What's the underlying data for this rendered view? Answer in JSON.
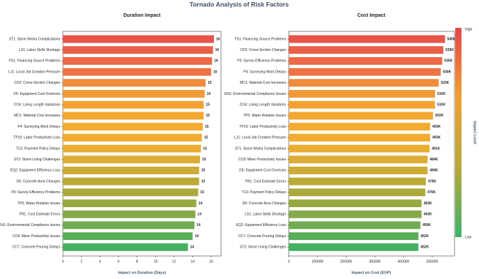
{
  "title": "Tornado Analysis of Risk Factors",
  "chart_data": [
    {
      "type": "barh",
      "title": "Duration Impact",
      "xlabel": "Impact on Duration (Days)",
      "categories": [
        "ST1: Stone Works Complications",
        "LS1: Labor Skills Shortage",
        "FS1: Financing Source Problems",
        "LJ1: Local Job Creation Pressure",
        "CO2: Cross-Section Changes",
        "D5: Equipment Cost Overruns",
        "CO4: Lining Length Variations",
        "MC1: Material Cost Increases",
        "P4: Surveying Work Delays",
        "TP10: Labor Productivity Loss",
        "TC3: Payment Policy Delays",
        "ST2: Stone Lining Challenges",
        "EQ2: Equipment Efficiency Loss",
        "D6: Concrete Area Changes",
        "P3: Survey Efficiency Problems",
        "TP5: Water Rotation Issues",
        "FR1: Cost Estimate Errors",
        "EN1: Environmental Compliance Issues",
        "CC8: Mixer Productivity Issues",
        "CC7: Concrete Pouring Delays"
      ],
      "values": [
        16.3,
        16.2,
        16.1,
        16.0,
        15.4,
        15.3,
        15.2,
        15.2,
        15.1,
        15.0,
        14.9,
        14.8,
        14.7,
        14.7,
        14.6,
        14.4,
        14.3,
        14.2,
        14.0,
        13.5
      ],
      "value_labels": [
        "16",
        "16",
        "16",
        "16",
        "15",
        "15",
        "15",
        "15",
        "15",
        "15",
        "15",
        "15",
        "15",
        "15",
        "15",
        "14",
        "14",
        "14",
        "14",
        "14"
      ],
      "colors": [
        "#e8534a",
        "#ea5f48",
        "#ec6b46",
        "#ee7444",
        "#f08c3c",
        "#f29a36",
        "#f3a232",
        "#f4a830",
        "#f4ab30",
        "#f2ac30",
        "#eaad32",
        "#dcad34",
        "#ccab36",
        "#bcaa38",
        "#aca93c",
        "#9aa842",
        "#86aa4a",
        "#70ac52",
        "#5aae5a",
        "#44b060"
      ],
      "xlim": [
        0,
        17.06
      ],
      "xticks": [
        0,
        2,
        4,
        6,
        8,
        10,
        12,
        14,
        16
      ],
      "grid": false
    },
    {
      "type": "barh",
      "title": "Cost Impact",
      "xlabel": "Impact on Cost (EGP)",
      "categories": [
        "FS1: Financing Source Problems",
        "CD2: Cross-Section Changes",
        "P3: Survey Efficiency Problems",
        "P4: Surveying Work Delays",
        "MC1: Material Cost Increases",
        "EN1: Environmental Compliance Issues",
        "CO4: Lining Length Variations",
        "TP5: Water Rotation Issues",
        "TP10: Labor Productivity Loss",
        "LJ1: Local Job Creation Pressure",
        "ST1: Stone Works Complications",
        "CC8: Mixer Productivity Issues",
        "D5: Equipment Cost Overruns",
        "FR1: Cost Estimate Errors",
        "TC3: Payment Policy Delays",
        "D6: Concrete Area Changes",
        "LS1: Labor Skills Shortage",
        "EQ2: Equipment Efficiency Loss",
        "CC7: Concrete Pouring Delays",
        "ST2: Stone Lining Challenges"
      ],
      "values": [
        545000,
        539000,
        535000,
        530000,
        523000,
        510000,
        510000,
        503000,
        493000,
        493000,
        491000,
        484000,
        484000,
        478000,
        476000,
        463000,
        463000,
        459000,
        452000,
        452000
      ],
      "value_labels": [
        "545K",
        "539K",
        "535K",
        "530K",
        "523K",
        "510K",
        "510K",
        "503K",
        "493K",
        "493K",
        "491K",
        "484K",
        "484K",
        "478K",
        "476K",
        "463K",
        "463K",
        "459K",
        "452K",
        "452K"
      ],
      "colors": [
        "#e8534a",
        "#ea5f48",
        "#ec6b46",
        "#ee7444",
        "#f08c3c",
        "#f29a36",
        "#f3a232",
        "#f4a830",
        "#f4ab30",
        "#f2ac30",
        "#eaad32",
        "#dcad34",
        "#ccab36",
        "#bcaa38",
        "#aca93c",
        "#9aa842",
        "#86aa4a",
        "#70ac52",
        "#5aae5a",
        "#44b060"
      ],
      "xlim": [
        0,
        578000
      ],
      "xticks": [
        0,
        100000,
        200000,
        300000,
        400000,
        500000
      ],
      "grid": false
    }
  ],
  "colorbar": {
    "label": "Impact Level",
    "high": "High",
    "low": "Low",
    "colors": [
      "#e8464a",
      "#f0a030",
      "#b8a83a",
      "#3cb36a"
    ]
  }
}
